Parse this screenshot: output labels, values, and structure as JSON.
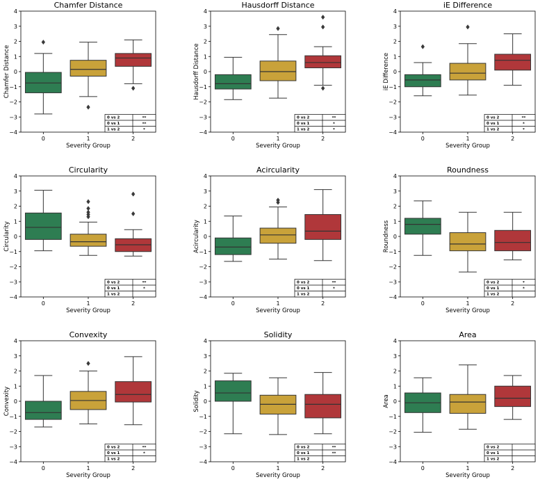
{
  "colors": {
    "group0": "#2e7d52",
    "group1": "#c9a23a",
    "group2": "#b0373a",
    "line": "#333333"
  },
  "chart_data": [
    {
      "type": "boxplot",
      "title": "Chamfer Distance",
      "xlabel": "Severity Group",
      "ylabel": "Chamfer Distance",
      "categories": [
        "0",
        "1",
        "2"
      ],
      "yticks": [
        -4,
        -3,
        -2,
        -1,
        0,
        1,
        2,
        3,
        4
      ],
      "ylim": [
        -4,
        4
      ],
      "boxes": [
        {
          "q1": -1.4,
          "median": -0.75,
          "q3": -0.05,
          "low": -2.8,
          "high": 1.2,
          "outliers": [
            1.95
          ]
        },
        {
          "q1": -0.3,
          "median": 0.15,
          "q3": 0.75,
          "low": -1.65,
          "high": 1.95,
          "outliers": [
            -2.35
          ]
        },
        {
          "q1": 0.35,
          "median": 0.9,
          "q3": 1.2,
          "low": -0.8,
          "high": 2.1,
          "outliers": [
            -1.1
          ]
        }
      ],
      "significance": [
        {
          "pair": "0 vs 2",
          "mark": "**"
        },
        {
          "pair": "0 vs 1",
          "mark": "**"
        },
        {
          "pair": "1 vs 2",
          "mark": "*"
        }
      ]
    },
    {
      "type": "boxplot",
      "title": "Hausdorff Distance",
      "xlabel": "Severity Group",
      "ylabel": "Hausdorff Distance",
      "categories": [
        "0",
        "1",
        "2"
      ],
      "yticks": [
        -4,
        -3,
        -2,
        -1,
        0,
        1,
        2,
        3,
        4
      ],
      "ylim": [
        -4,
        4
      ],
      "boxes": [
        {
          "q1": -1.15,
          "median": -0.8,
          "q3": -0.2,
          "low": -1.85,
          "high": 0.95,
          "outliers": []
        },
        {
          "q1": -0.6,
          "median": 0.0,
          "q3": 0.7,
          "low": -1.75,
          "high": 2.45,
          "outliers": [
            2.85
          ]
        },
        {
          "q1": 0.25,
          "median": 0.6,
          "q3": 1.05,
          "low": -0.9,
          "high": 1.65,
          "outliers": [
            2.95,
            3.6,
            -1.1
          ]
        }
      ],
      "significance": [
        {
          "pair": "0 vs 2",
          "mark": "**"
        },
        {
          "pair": "0 vs 1",
          "mark": "*"
        },
        {
          "pair": "1 vs 2",
          "mark": "*"
        }
      ]
    },
    {
      "type": "boxplot",
      "title": "iE Difference",
      "xlabel": "Severity Group",
      "ylabel": "iE Difference",
      "categories": [
        "0",
        "1",
        "2"
      ],
      "yticks": [
        -4,
        -3,
        -2,
        -1,
        0,
        1,
        2,
        3,
        4
      ],
      "ylim": [
        -4,
        4
      ],
      "boxes": [
        {
          "q1": -1.0,
          "median": -0.55,
          "q3": -0.2,
          "low": -1.6,
          "high": 0.6,
          "outliers": [
            1.65
          ]
        },
        {
          "q1": -0.55,
          "median": -0.1,
          "q3": 0.55,
          "low": -1.55,
          "high": 1.85,
          "outliers": [
            2.95
          ]
        },
        {
          "q1": 0.1,
          "median": 0.75,
          "q3": 1.15,
          "low": -0.9,
          "high": 2.5,
          "outliers": []
        }
      ],
      "significance": [
        {
          "pair": "0 vs 2",
          "mark": "**"
        },
        {
          "pair": "0 vs 1",
          "mark": "*"
        },
        {
          "pair": "1 vs 2",
          "mark": "*"
        }
      ]
    },
    {
      "type": "boxplot",
      "title": "Circularity",
      "xlabel": "Severity Group",
      "ylabel": "Circularity",
      "categories": [
        "0",
        "1",
        "2"
      ],
      "yticks": [
        -4,
        -3,
        -2,
        -1,
        0,
        1,
        2,
        3,
        4
      ],
      "ylim": [
        -4,
        4
      ],
      "boxes": [
        {
          "q1": -0.2,
          "median": 0.6,
          "q3": 1.55,
          "low": -0.95,
          "high": 3.05,
          "outliers": []
        },
        {
          "q1": -0.65,
          "median": -0.35,
          "q3": 0.15,
          "low": -1.25,
          "high": 0.95,
          "outliers": [
            1.3,
            1.45,
            1.6,
            1.85,
            2.3
          ]
        },
        {
          "q1": -1.0,
          "median": -0.55,
          "q3": -0.15,
          "low": -1.3,
          "high": 0.45,
          "outliers": [
            1.5,
            2.8
          ]
        }
      ],
      "significance": [
        {
          "pair": "0 vs 2",
          "mark": "**"
        },
        {
          "pair": "0 vs 1",
          "mark": "*"
        },
        {
          "pair": "1 vs 2",
          "mark": ""
        }
      ]
    },
    {
      "type": "boxplot",
      "title": "Acircularity",
      "xlabel": "Severity Group",
      "ylabel": "Acircularity",
      "categories": [
        "0",
        "1",
        "2"
      ],
      "yticks": [
        -4,
        -3,
        -2,
        -1,
        0,
        1,
        2,
        3,
        4
      ],
      "ylim": [
        -4,
        4
      ],
      "boxes": [
        {
          "q1": -1.2,
          "median": -0.7,
          "q3": -0.1,
          "low": -1.65,
          "high": 1.35,
          "outliers": []
        },
        {
          "q1": -0.45,
          "median": 0.1,
          "q3": 0.55,
          "low": -1.5,
          "high": 1.95,
          "outliers": [
            2.25,
            2.4
          ]
        },
        {
          "q1": -0.2,
          "median": 0.35,
          "q3": 1.45,
          "low": -1.6,
          "high": 3.1,
          "outliers": []
        }
      ],
      "significance": [
        {
          "pair": "0 vs 2",
          "mark": "**"
        },
        {
          "pair": "0 vs 1",
          "mark": "*"
        },
        {
          "pair": "1 vs 2",
          "mark": ""
        }
      ]
    },
    {
      "type": "boxplot",
      "title": "Roundness",
      "xlabel": "Severity Group",
      "ylabel": "Roundness",
      "categories": [
        "0",
        "1",
        "2"
      ],
      "yticks": [
        -4,
        -3,
        -2,
        -1,
        0,
        1,
        2,
        3,
        4
      ],
      "ylim": [
        -4,
        4
      ],
      "boxes": [
        {
          "q1": 0.15,
          "median": 0.8,
          "q3": 1.2,
          "low": -1.25,
          "high": 2.35,
          "outliers": []
        },
        {
          "q1": -0.95,
          "median": -0.5,
          "q3": 0.25,
          "low": -2.35,
          "high": 1.6,
          "outliers": []
        },
        {
          "q1": -0.95,
          "median": -0.4,
          "q3": 0.4,
          "low": -1.55,
          "high": 1.6,
          "outliers": []
        }
      ],
      "significance": [
        {
          "pair": "0 vs 2",
          "mark": "*"
        },
        {
          "pair": "0 vs 1",
          "mark": "*"
        },
        {
          "pair": "1 vs 2",
          "mark": ""
        }
      ]
    },
    {
      "type": "boxplot",
      "title": "Convexity",
      "xlabel": "Severity Group",
      "ylabel": "Convexity",
      "categories": [
        "0",
        "1",
        "2"
      ],
      "yticks": [
        -4,
        -3,
        -2,
        -1,
        0,
        1,
        2,
        3,
        4
      ],
      "ylim": [
        -4,
        4
      ],
      "boxes": [
        {
          "q1": -1.2,
          "median": -0.75,
          "q3": 0.0,
          "low": -1.7,
          "high": 1.7,
          "outliers": []
        },
        {
          "q1": -0.55,
          "median": 0.05,
          "q3": 0.65,
          "low": -1.5,
          "high": 2.0,
          "outliers": [
            2.5
          ]
        },
        {
          "q1": -0.05,
          "median": 0.45,
          "q3": 1.3,
          "low": -1.55,
          "high": 2.95,
          "outliers": []
        }
      ],
      "significance": [
        {
          "pair": "0 vs 2",
          "mark": "**"
        },
        {
          "pair": "0 vs 1",
          "mark": "*"
        },
        {
          "pair": "1 vs 2",
          "mark": ""
        }
      ]
    },
    {
      "type": "boxplot",
      "title": "Solidity",
      "xlabel": "Severity Group",
      "ylabel": "Solidity",
      "categories": [
        "0",
        "1",
        "2"
      ],
      "yticks": [
        -4,
        -3,
        -2,
        -1,
        0,
        1,
        2,
        3,
        4
      ],
      "ylim": [
        -4,
        4
      ],
      "boxes": [
        {
          "q1": 0.0,
          "median": 0.55,
          "q3": 1.35,
          "low": -2.15,
          "high": 1.85,
          "outliers": []
        },
        {
          "q1": -0.85,
          "median": -0.2,
          "q3": 0.4,
          "low": -2.2,
          "high": 1.55,
          "outliers": []
        },
        {
          "q1": -1.1,
          "median": -0.2,
          "q3": 0.45,
          "low": -2.15,
          "high": 1.9,
          "outliers": []
        }
      ],
      "significance": [
        {
          "pair": "0 vs 2",
          "mark": "**"
        },
        {
          "pair": "0 vs 1",
          "mark": "**"
        },
        {
          "pair": "1 vs 2",
          "mark": ""
        }
      ]
    },
    {
      "type": "boxplot",
      "title": "Area",
      "xlabel": "Severity Group",
      "ylabel": "Area",
      "categories": [
        "0",
        "1",
        "2"
      ],
      "yticks": [
        -4,
        -3,
        -2,
        -1,
        0,
        1,
        2,
        3,
        4
      ],
      "ylim": [
        -4,
        4
      ],
      "boxes": [
        {
          "q1": -0.75,
          "median": -0.1,
          "q3": 0.55,
          "low": -2.05,
          "high": 1.55,
          "outliers": []
        },
        {
          "q1": -0.8,
          "median": -0.05,
          "q3": 0.45,
          "low": -1.85,
          "high": 2.4,
          "outliers": []
        },
        {
          "q1": -0.35,
          "median": 0.2,
          "q3": 1.0,
          "low": -1.2,
          "high": 1.7,
          "outliers": []
        }
      ],
      "significance": [
        {
          "pair": "0 vs 2",
          "mark": ""
        },
        {
          "pair": "0 vs 1",
          "mark": ""
        },
        {
          "pair": "1 vs 2",
          "mark": ""
        }
      ]
    }
  ]
}
